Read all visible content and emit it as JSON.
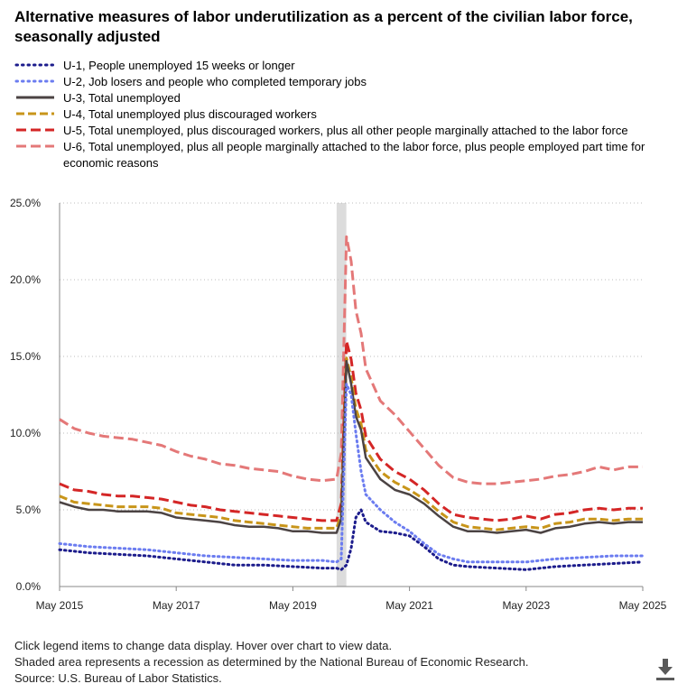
{
  "title": "Alternative measures of labor underutilization as a percent of the civilian labor force, seasonally adjusted",
  "legend": [
    {
      "key": "u1",
      "label": "U-1, People unemployed 15 weeks or longer"
    },
    {
      "key": "u2",
      "label": "U-2, Job losers and people who completed temporary jobs"
    },
    {
      "key": "u3",
      "label": "U-3, Total unemployed"
    },
    {
      "key": "u4",
      "label": "U-4, Total unemployed plus discouraged workers"
    },
    {
      "key": "u5",
      "label": "U-5, Total unemployed, plus discouraged workers, plus all other people marginally attached to the labor force"
    },
    {
      "key": "u6",
      "label": "U-6, Total unemployed, plus all people marginally attached to the labor force, plus people employed part time for economic reasons"
    }
  ],
  "footer": {
    "line1": "Click legend items to change data display. Hover over chart to view data.",
    "line2": "Shaded area represents a recession as determined by the National Bureau of Economic Research.",
    "line3": "Source: U.S. Bureau of Labor Statistics."
  },
  "icons": {
    "download": "download-icon"
  },
  "chart_data": {
    "type": "line",
    "title": "Alternative measures of labor underutilization as a percent of the civilian labor force, seasonally adjusted",
    "xlabel": "",
    "ylabel": "",
    "x_start": "May 2015",
    "x_end": "May 2025",
    "x_unit": "years since May 2015",
    "xlim": [
      0,
      10
    ],
    "ylim": [
      0,
      25
    ],
    "y_ticks": [
      "0.0%",
      "5.0%",
      "10.0%",
      "15.0%",
      "20.0%",
      "25.0%"
    ],
    "x_ticks": [
      "May 2015",
      "May 2017",
      "May 2019",
      "May 2021",
      "May 2023",
      "May 2025"
    ],
    "grid": true,
    "recession": {
      "start": 4.75,
      "end": 4.917
    },
    "series": [
      {
        "name": "U-1, People unemployed 15 weeks or longer",
        "key": "u1",
        "color": "#1c1c8c",
        "dash": "1.5,4",
        "width": 3,
        "x": [
          0,
          0.5,
          1,
          1.5,
          2,
          2.5,
          3,
          3.5,
          4,
          4.5,
          4.75,
          4.83,
          4.92,
          5.0,
          5.08,
          5.17,
          5.25,
          5.5,
          5.75,
          6.0,
          6.25,
          6.5,
          6.75,
          7,
          7.5,
          8,
          8.5,
          9,
          9.5,
          10
        ],
        "y": [
          2.4,
          2.2,
          2.1,
          2.0,
          1.8,
          1.6,
          1.4,
          1.4,
          1.3,
          1.2,
          1.2,
          1.1,
          1.4,
          2.5,
          4.5,
          5.0,
          4.2,
          3.6,
          3.5,
          3.3,
          2.6,
          1.8,
          1.4,
          1.3,
          1.2,
          1.1,
          1.3,
          1.4,
          1.5,
          1.6
        ]
      },
      {
        "name": "U-2, Job losers and people who completed temporary jobs",
        "key": "u2",
        "color": "#6b7cf0",
        "dash": "1.5,4",
        "width": 3,
        "x": [
          0,
          0.5,
          1,
          1.5,
          2,
          2.5,
          3,
          3.5,
          4,
          4.5,
          4.75,
          4.83,
          4.92,
          5.0,
          5.08,
          5.17,
          5.25,
          5.5,
          5.75,
          6.0,
          6.25,
          6.5,
          6.75,
          7,
          7.5,
          8,
          8.5,
          9,
          9.5,
          10
        ],
        "y": [
          2.8,
          2.6,
          2.5,
          2.4,
          2.2,
          2.0,
          1.9,
          1.8,
          1.7,
          1.7,
          1.6,
          1.8,
          13.2,
          12.5,
          10.0,
          7.5,
          6.0,
          5.0,
          4.2,
          3.6,
          2.8,
          2.1,
          1.8,
          1.6,
          1.6,
          1.6,
          1.8,
          1.9,
          2.0,
          2.0
        ]
      },
      {
        "name": "U-3, Total unemployed",
        "key": "u3",
        "color": "#4b4343",
        "dash": "none",
        "width": 2.5,
        "x": [
          0,
          0.25,
          0.5,
          0.75,
          1,
          1.25,
          1.5,
          1.75,
          2,
          2.25,
          2.5,
          2.75,
          3,
          3.25,
          3.5,
          3.75,
          4,
          4.25,
          4.5,
          4.75,
          4.83,
          4.92,
          5.0,
          5.08,
          5.17,
          5.25,
          5.5,
          5.75,
          6.0,
          6.25,
          6.5,
          6.75,
          7,
          7.25,
          7.5,
          7.75,
          8,
          8.25,
          8.5,
          8.75,
          9,
          9.25,
          9.5,
          9.75,
          10
        ],
        "y": [
          5.5,
          5.2,
          5.0,
          5.0,
          4.9,
          4.9,
          4.9,
          4.8,
          4.5,
          4.4,
          4.3,
          4.2,
          4.0,
          3.9,
          3.9,
          3.8,
          3.6,
          3.6,
          3.5,
          3.5,
          4.4,
          14.7,
          13.2,
          11.1,
          10.2,
          8.4,
          7.0,
          6.3,
          6.0,
          5.4,
          4.6,
          3.9,
          3.6,
          3.6,
          3.5,
          3.6,
          3.7,
          3.5,
          3.8,
          3.9,
          4.1,
          4.2,
          4.1,
          4.2,
          4.2
        ]
      },
      {
        "name": "U-4, Total unemployed plus discouraged workers",
        "key": "u4",
        "color": "#c8951a",
        "dash": "9,4",
        "width": 3,
        "x": [
          0,
          0.25,
          0.5,
          0.75,
          1,
          1.25,
          1.5,
          1.75,
          2,
          2.25,
          2.5,
          2.75,
          3,
          3.25,
          3.5,
          3.75,
          4,
          4.25,
          4.5,
          4.75,
          4.83,
          4.92,
          5.0,
          5.08,
          5.17,
          5.25,
          5.5,
          5.75,
          6.0,
          6.25,
          6.5,
          6.75,
          7,
          7.25,
          7.5,
          7.75,
          8,
          8.25,
          8.5,
          8.75,
          9,
          9.25,
          9.5,
          9.75,
          10
        ],
        "y": [
          5.9,
          5.5,
          5.4,
          5.3,
          5.2,
          5.2,
          5.2,
          5.1,
          4.8,
          4.7,
          4.6,
          4.5,
          4.3,
          4.2,
          4.1,
          4.0,
          3.9,
          3.8,
          3.8,
          3.8,
          4.7,
          14.9,
          13.6,
          11.6,
          10.6,
          8.9,
          7.5,
          6.8,
          6.3,
          5.7,
          4.9,
          4.2,
          3.9,
          3.8,
          3.7,
          3.8,
          3.9,
          3.8,
          4.1,
          4.2,
          4.4,
          4.4,
          4.3,
          4.4,
          4.4
        ]
      },
      {
        "name": "U-5, Total unemployed, plus discouraged workers, plus all other people marginally attached to the labor force",
        "key": "u5",
        "color": "#d42626",
        "dash": "11,5",
        "width": 3,
        "x": [
          0,
          0.25,
          0.5,
          0.75,
          1,
          1.25,
          1.5,
          1.75,
          2,
          2.25,
          2.5,
          2.75,
          3,
          3.25,
          3.5,
          3.75,
          4,
          4.25,
          4.5,
          4.75,
          4.83,
          4.92,
          5.0,
          5.08,
          5.17,
          5.25,
          5.5,
          5.75,
          6.0,
          6.25,
          6.5,
          6.75,
          7,
          7.25,
          7.5,
          7.75,
          8,
          8.25,
          8.5,
          8.75,
          9,
          9.25,
          9.5,
          9.75,
          10
        ],
        "y": [
          6.7,
          6.3,
          6.2,
          6.0,
          5.9,
          5.9,
          5.8,
          5.7,
          5.5,
          5.3,
          5.2,
          5.0,
          4.9,
          4.8,
          4.7,
          4.6,
          4.5,
          4.4,
          4.3,
          4.3,
          5.4,
          16.0,
          14.8,
          12.6,
          11.5,
          9.8,
          8.3,
          7.5,
          7.0,
          6.3,
          5.4,
          4.7,
          4.5,
          4.4,
          4.3,
          4.4,
          4.6,
          4.4,
          4.7,
          4.8,
          5.0,
          5.1,
          5.0,
          5.1,
          5.1
        ]
      },
      {
        "name": "U-6, Total unemployed, plus all people marginally attached to the labor force, plus people employed part time for economic reasons",
        "key": "u6",
        "color": "#e47878",
        "dash": "11,5",
        "width": 3,
        "x": [
          0,
          0.25,
          0.5,
          0.75,
          1,
          1.25,
          1.5,
          1.75,
          2,
          2.25,
          2.5,
          2.75,
          3,
          3.25,
          3.5,
          3.75,
          4,
          4.25,
          4.5,
          4.75,
          4.83,
          4.92,
          5.0,
          5.08,
          5.17,
          5.25,
          5.5,
          5.75,
          6.0,
          6.25,
          6.5,
          6.75,
          7,
          7.25,
          7.5,
          7.75,
          8,
          8.25,
          8.5,
          8.75,
          9,
          9.25,
          9.5,
          9.75,
          10
        ],
        "y": [
          10.9,
          10.3,
          10.0,
          9.8,
          9.7,
          9.6,
          9.4,
          9.2,
          8.8,
          8.5,
          8.3,
          8.0,
          7.9,
          7.7,
          7.6,
          7.5,
          7.2,
          7.0,
          6.9,
          7.0,
          8.7,
          22.8,
          21.2,
          18.0,
          16.5,
          14.2,
          12.1,
          11.2,
          10.1,
          9.0,
          7.9,
          7.1,
          6.8,
          6.7,
          6.7,
          6.8,
          6.9,
          7.0,
          7.2,
          7.3,
          7.5,
          7.8,
          7.6,
          7.8,
          7.8
        ]
      }
    ]
  }
}
